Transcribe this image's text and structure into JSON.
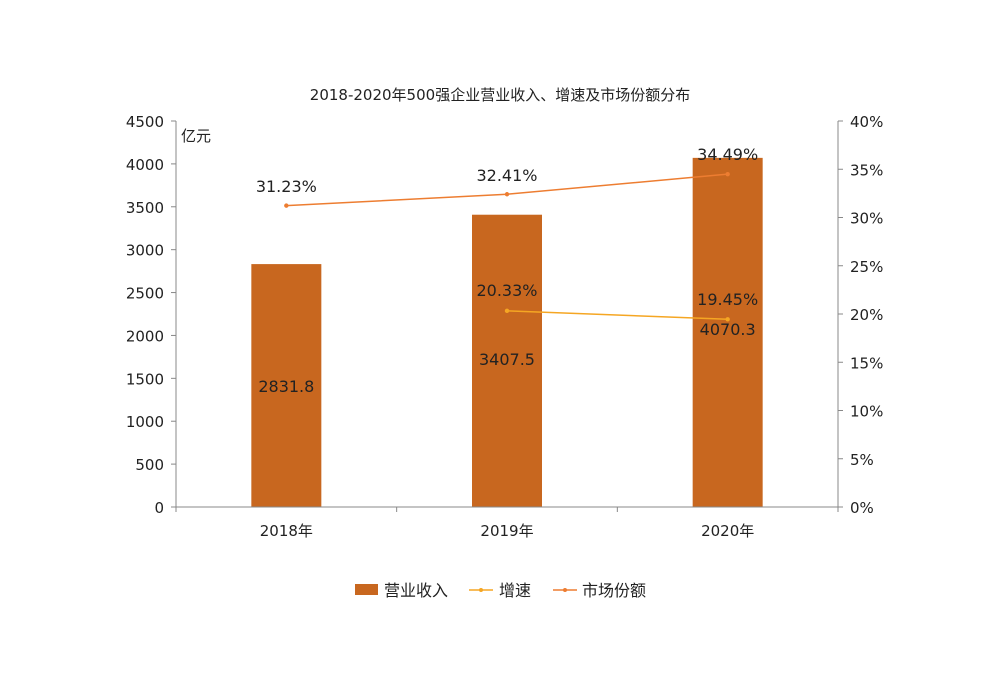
{
  "chart_data": {
    "type": "bar",
    "title": "2018-2020年500强企业营业收入、增速及市场份额分布",
    "categories": [
      "2018年",
      "2019年",
      "2020年"
    ],
    "ylabel": "亿元",
    "ylim": [
      0,
      4500
    ],
    "yticks": [
      "0",
      "500",
      "1000",
      "1500",
      "2000",
      "2500",
      "3000",
      "3500",
      "4000",
      "4500"
    ],
    "y2lim": [
      0,
      40
    ],
    "y2ticks": [
      "0%",
      "5%",
      "10%",
      "15%",
      "20%",
      "25%",
      "30%",
      "35%",
      "40%"
    ],
    "grid": false,
    "legend_position": "bottom",
    "series": [
      {
        "name": "营业收入",
        "type": "bar",
        "axis": "left",
        "color": "#C8671F",
        "values": [
          2831.8,
          3407.5,
          4070.3
        ],
        "labels": [
          "2831.8",
          "3407.5",
          "4070.3"
        ]
      },
      {
        "name": "增速",
        "type": "line",
        "axis": "right",
        "color": "#F5A623",
        "values": [
          null,
          20.33,
          19.45
        ],
        "labels": [
          "",
          "20.33%",
          "19.45%"
        ]
      },
      {
        "name": "市场份额",
        "type": "line",
        "axis": "right",
        "color": "#ED7D31",
        "values": [
          31.23,
          32.41,
          34.49
        ],
        "labels": [
          "31.23%",
          "32.41%",
          "34.49%"
        ]
      }
    ]
  }
}
